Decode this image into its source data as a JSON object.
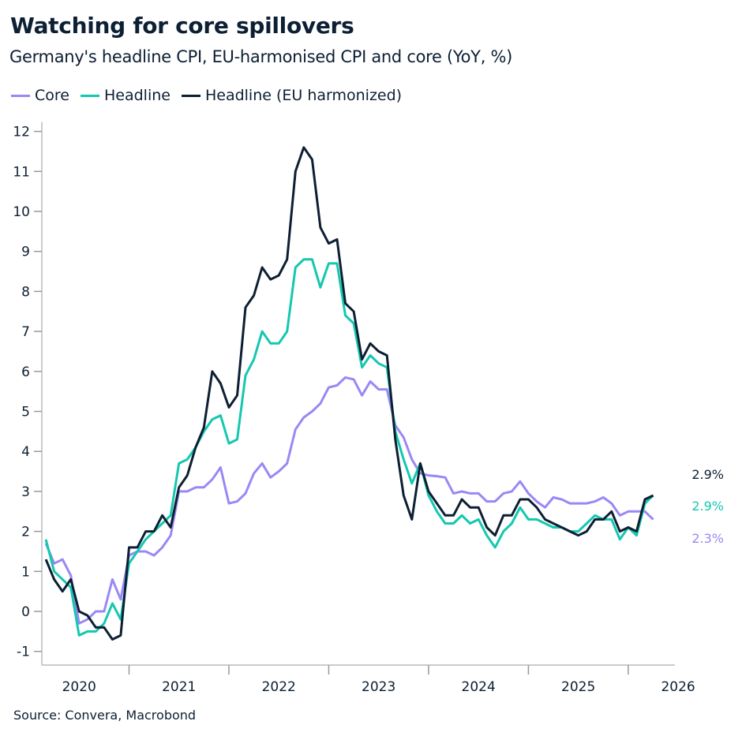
{
  "chart_data": {
    "type": "line",
    "title": "Watching for core spillovers",
    "subtitle": "Germany's headline CPI, EU-harmonised CPI and core (YoY, %)",
    "source": "Source: Convera, Macrobond",
    "legend_position": "top-left",
    "grid": false,
    "ylim": [
      -1,
      12
    ],
    "yticks": [
      "-1",
      "0",
      "1",
      "2",
      "3",
      "4",
      "5",
      "6",
      "7",
      "8",
      "9",
      "10",
      "11",
      "12"
    ],
    "xticks": [
      "2020",
      "2021",
      "2022",
      "2023",
      "2024",
      "2025",
      "2026"
    ],
    "x": [
      "2020-03",
      "2020-04",
      "2020-05",
      "2020-06",
      "2020-07",
      "2020-08",
      "2020-09",
      "2020-10",
      "2020-11",
      "2020-12",
      "2021-01",
      "2021-02",
      "2021-03",
      "2021-04",
      "2021-05",
      "2021-06",
      "2021-07",
      "2021-08",
      "2021-09",
      "2021-10",
      "2021-11",
      "2021-12",
      "2022-01",
      "2022-02",
      "2022-03",
      "2022-04",
      "2022-05",
      "2022-06",
      "2022-07",
      "2022-08",
      "2022-09",
      "2022-10",
      "2022-11",
      "2022-12",
      "2023-01",
      "2023-02",
      "2023-03",
      "2023-04",
      "2023-05",
      "2023-06",
      "2023-07",
      "2023-08",
      "2023-09",
      "2023-10",
      "2023-11",
      "2023-12",
      "2024-01",
      "2024-02",
      "2024-03",
      "2024-04",
      "2024-05",
      "2024-06",
      "2024-07",
      "2024-08",
      "2024-09",
      "2024-10",
      "2024-11",
      "2024-12",
      "2025-01",
      "2025-02",
      "2025-03",
      "2025-04",
      "2025-05",
      "2025-06",
      "2025-07",
      "2025-08",
      "2025-09",
      "2025-10",
      "2025-11",
      "2025-12",
      "2026-01",
      "2026-02",
      "2026-03",
      "2026-04"
    ],
    "series": [
      {
        "name": "Core",
        "color": "#9b87f5",
        "end_label": "2.3%",
        "values": [
          1.7,
          1.2,
          1.3,
          0.9,
          -0.3,
          -0.2,
          0.0,
          0.0,
          0.8,
          0.3,
          1.4,
          1.5,
          1.5,
          1.4,
          1.6,
          1.9,
          3.0,
          3.0,
          3.1,
          3.1,
          3.3,
          3.6,
          2.7,
          2.75,
          2.95,
          3.45,
          3.7,
          3.35,
          3.5,
          3.7,
          4.55,
          4.85,
          5.0,
          5.2,
          5.6,
          5.65,
          5.85,
          5.8,
          5.4,
          5.75,
          5.55,
          5.55,
          4.65,
          4.35,
          3.8,
          3.45,
          3.4,
          3.38,
          3.35,
          2.95,
          3.0,
          2.95,
          2.95,
          2.75,
          2.75,
          2.95,
          3.0,
          3.25,
          2.95,
          2.75,
          2.6,
          2.85,
          2.8,
          2.7,
          2.7,
          2.7,
          2.75,
          2.85,
          2.7,
          2.4,
          2.5,
          2.5,
          2.5,
          2.3
        ]
      },
      {
        "name": "Headline",
        "color": "#14c8b0",
        "end_label": "2.9%",
        "values": [
          1.8,
          1.0,
          0.8,
          0.6,
          -0.6,
          -0.5,
          -0.5,
          -0.3,
          0.2,
          -0.2,
          1.2,
          1.5,
          1.8,
          2.0,
          2.2,
          2.4,
          3.7,
          3.8,
          4.1,
          4.5,
          4.8,
          4.9,
          4.2,
          4.3,
          5.9,
          6.3,
          7.0,
          6.7,
          6.7,
          7.0,
          8.6,
          8.8,
          8.8,
          8.1,
          8.7,
          8.7,
          7.4,
          7.2,
          6.1,
          6.4,
          6.2,
          6.1,
          4.5,
          3.8,
          3.2,
          3.7,
          2.9,
          2.5,
          2.2,
          2.2,
          2.4,
          2.2,
          2.3,
          1.9,
          1.6,
          2.0,
          2.2,
          2.6,
          2.3,
          2.3,
          2.2,
          2.1,
          2.1,
          2.0,
          2.0,
          2.2,
          2.4,
          2.3,
          2.3,
          1.8,
          2.1,
          1.9,
          2.7,
          2.9
        ]
      },
      {
        "name": "Headline (EU harmonized)",
        "color": "#0d1f33",
        "end_label": "2.9%",
        "values": [
          1.3,
          0.8,
          0.5,
          0.8,
          0.0,
          -0.1,
          -0.4,
          -0.4,
          -0.7,
          -0.6,
          1.6,
          1.6,
          2.0,
          2.0,
          2.4,
          2.1,
          3.1,
          3.4,
          4.1,
          4.6,
          6.0,
          5.7,
          5.1,
          5.4,
          7.6,
          7.9,
          8.6,
          8.3,
          8.4,
          8.8,
          11.0,
          11.6,
          11.3,
          9.6,
          9.2,
          9.3,
          7.7,
          7.5,
          6.3,
          6.7,
          6.5,
          6.4,
          4.3,
          2.9,
          2.3,
          3.7,
          3.0,
          2.7,
          2.4,
          2.4,
          2.8,
          2.6,
          2.6,
          2.1,
          1.9,
          2.4,
          2.4,
          2.8,
          2.8,
          2.6,
          2.3,
          2.2,
          2.1,
          2.0,
          1.9,
          2.0,
          2.3,
          2.3,
          2.5,
          2.0,
          2.1,
          2.0,
          2.8,
          2.9
        ]
      }
    ]
  }
}
